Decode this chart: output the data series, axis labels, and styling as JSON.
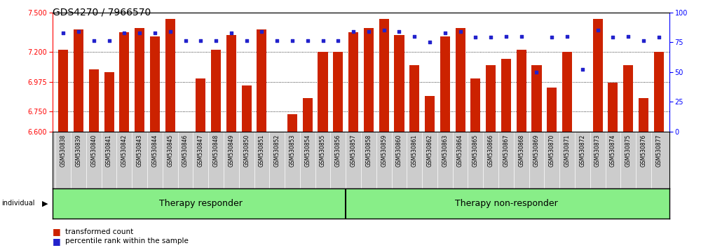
{
  "title": "GDS4270 / 7966570",
  "samples": [
    "GSM530838",
    "GSM530839",
    "GSM530840",
    "GSM530841",
    "GSM530842",
    "GSM530843",
    "GSM530844",
    "GSM530845",
    "GSM530846",
    "GSM530847",
    "GSM530848",
    "GSM530849",
    "GSM530850",
    "GSM530851",
    "GSM530852",
    "GSM530853",
    "GSM530854",
    "GSM530855",
    "GSM530856",
    "GSM530857",
    "GSM530858",
    "GSM530859",
    "GSM530860",
    "GSM530861",
    "GSM530862",
    "GSM530863",
    "GSM530864",
    "GSM530865",
    "GSM530866",
    "GSM530867",
    "GSM530868",
    "GSM530869",
    "GSM530870",
    "GSM530871",
    "GSM530872",
    "GSM530873",
    "GSM530874",
    "GSM530875",
    "GSM530876",
    "GSM530877"
  ],
  "bar_values": [
    7.22,
    7.37,
    7.07,
    7.05,
    7.35,
    7.38,
    7.32,
    7.45,
    6.6,
    7.0,
    7.22,
    7.33,
    6.95,
    7.37,
    6.52,
    6.73,
    6.85,
    7.2,
    7.2,
    7.35,
    7.38,
    7.45,
    7.33,
    7.1,
    6.87,
    7.32,
    7.38,
    7.0,
    7.1,
    7.15,
    7.22,
    7.1,
    6.93,
    7.2,
    6.6,
    7.45,
    6.97,
    7.1,
    6.85,
    7.2
  ],
  "percentile_values": [
    83,
    84,
    76,
    76,
    83,
    83,
    83,
    84,
    76,
    76,
    76,
    83,
    76,
    84,
    76,
    76,
    76,
    76,
    76,
    84,
    84,
    85,
    84,
    80,
    75,
    83,
    84,
    79,
    79,
    80,
    80,
    50,
    79,
    80,
    52,
    85,
    79,
    80,
    76,
    79
  ],
  "group1_count": 19,
  "group2_count": 21,
  "group1_label": "Therapy responder",
  "group2_label": "Therapy non-responder",
  "ylim_left": [
    6.6,
    7.5
  ],
  "ylim_right": [
    0,
    100
  ],
  "yticks_left": [
    6.6,
    6.75,
    6.975,
    7.2,
    7.5
  ],
  "yticks_right": [
    0,
    25,
    50,
    75,
    100
  ],
  "bar_color": "#CC2200",
  "dot_color": "#2222CC",
  "bar_width": 0.65,
  "legend_bar_label": "transformed count",
  "legend_dot_label": "percentile rank within the sample",
  "individual_label": "individual",
  "title_fontsize": 10,
  "tick_fontsize": 7,
  "label_fontsize": 8,
  "group_fontsize": 9,
  "background_color": "#ffffff",
  "plot_bg_color": "#ffffff",
  "label_bg_color": "#cccccc",
  "group_bg_color": "#88ee88"
}
